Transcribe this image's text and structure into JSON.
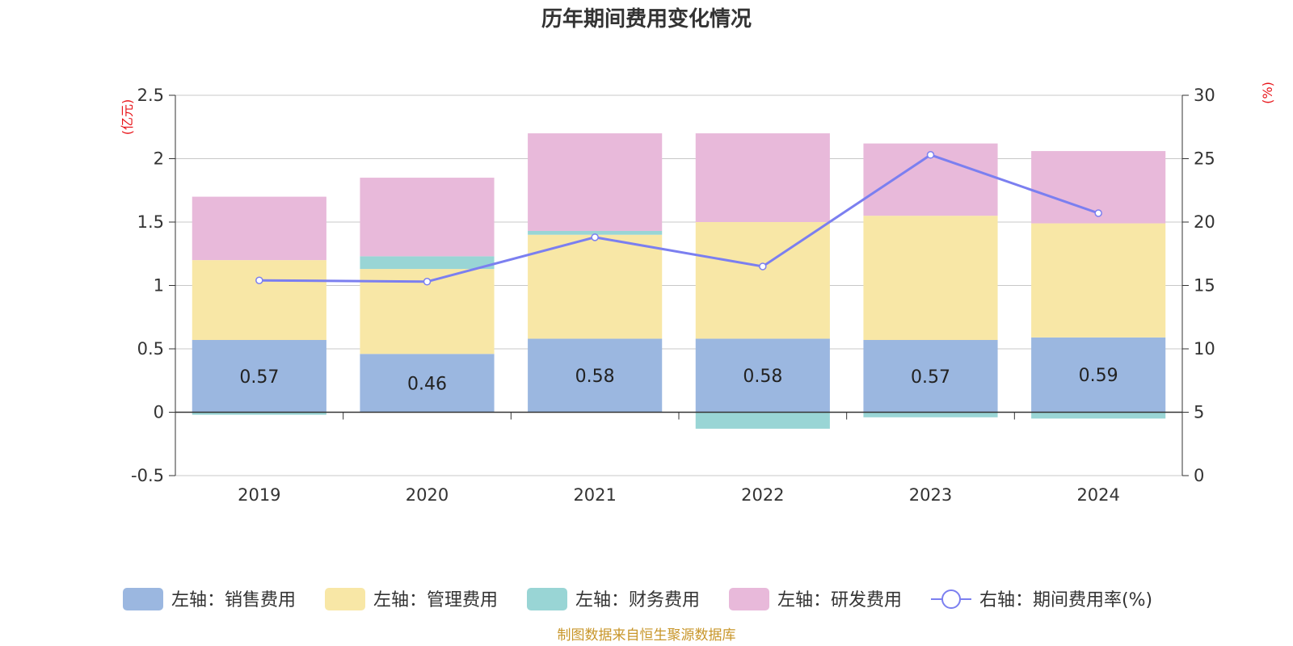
{
  "chart_data": {
    "type": "bar",
    "title": "历年期间费用变化情况",
    "categories": [
      "2019",
      "2020",
      "2021",
      "2022",
      "2023",
      "2024"
    ],
    "left_axis": {
      "unit": "(亿元)",
      "ylim": [
        -0.5,
        2.5
      ],
      "ticks": [
        "2.5",
        "2",
        "1.5",
        "1",
        "0.5",
        "0",
        "-0.5"
      ],
      "tick_values": [
        2.5,
        2,
        1.5,
        1,
        0.5,
        0,
        -0.5
      ]
    },
    "right_axis": {
      "unit": "(%)",
      "ylim": [
        0,
        30
      ],
      "ticks": [
        "30",
        "25",
        "20",
        "15",
        "10",
        "5",
        "0"
      ],
      "tick_values": [
        30,
        25,
        20,
        15,
        10,
        5,
        0
      ]
    },
    "series": [
      {
        "name": "左轴：销售费用",
        "color": "#9bb7e0",
        "values": [
          0.57,
          0.46,
          0.58,
          0.58,
          0.57,
          0.59
        ],
        "labels": [
          "0.57",
          "0.46",
          "0.58",
          "0.58",
          "0.57",
          "0.59"
        ]
      },
      {
        "name": "左轴：管理费用",
        "color": "#f8e7a6",
        "values": [
          0.63,
          0.67,
          0.82,
          0.92,
          0.98,
          0.9
        ]
      },
      {
        "name": "左轴：财务费用",
        "color": "#99d5d5",
        "values": [
          -0.02,
          0.1,
          0.03,
          -0.13,
          -0.04,
          -0.05
        ]
      },
      {
        "name": "左轴：研发费用",
        "color": "#e8b9da",
        "values": [
          0.5,
          0.62,
          0.77,
          0.7,
          0.57,
          0.57
        ]
      }
    ],
    "line": {
      "name": "右轴：期间费用率(%)",
      "color": "#7b7ff0",
      "values": [
        15.4,
        15.3,
        18.8,
        16.5,
        25.3,
        20.7
      ]
    },
    "grid": true,
    "legend_position": "bottom"
  },
  "source_note": "制图数据来自恒生聚源数据库"
}
